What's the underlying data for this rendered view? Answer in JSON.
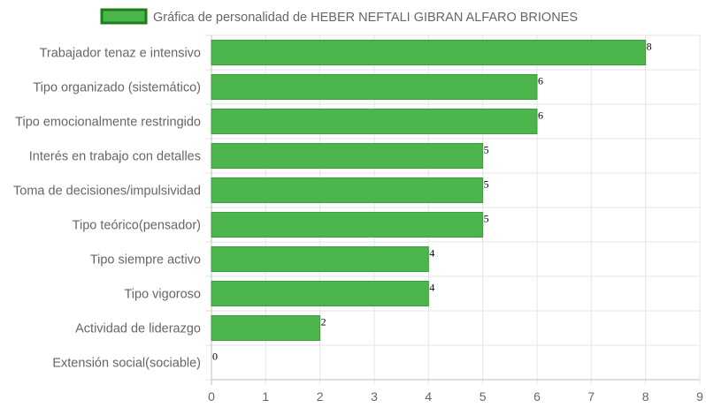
{
  "chart_data": {
    "type": "bar",
    "orientation": "horizontal",
    "legend": {
      "label": "Gráfica de personalidad de HEBER NEFTALI GIBRAN ALFARO BRIONES",
      "position": "top-center"
    },
    "categories": [
      "Trabajador tenaz e intensivo",
      "Tipo organizado (sistemático)",
      "Tipo emocionalmente restringido",
      "Interés en trabajo con detalles",
      "Toma de decisiones/impulsividad",
      "Tipo teórico(pensador)",
      "Tipo siempre activo",
      "Tipo vigoroso",
      "Actividad de liderazgo",
      "Extensión social(sociable)"
    ],
    "series": [
      {
        "name": "Gráfica de personalidad de HEBER NEFTALI GIBRAN ALFARO BRIONES",
        "values": [
          8,
          6,
          6,
          5,
          5,
          5,
          4,
          4,
          2,
          0
        ]
      }
    ],
    "xlim": [
      0,
      9
    ],
    "xticks": [
      "0",
      "1",
      "2",
      "3",
      "4",
      "5",
      "6",
      "7",
      "8",
      "9"
    ],
    "grid": true,
    "colors": {
      "bar_fill": "#4cb54c",
      "bar_border": "#3a9f3a",
      "legend_border": "#1a7f1a",
      "grid": "#e6e6e6"
    }
  }
}
